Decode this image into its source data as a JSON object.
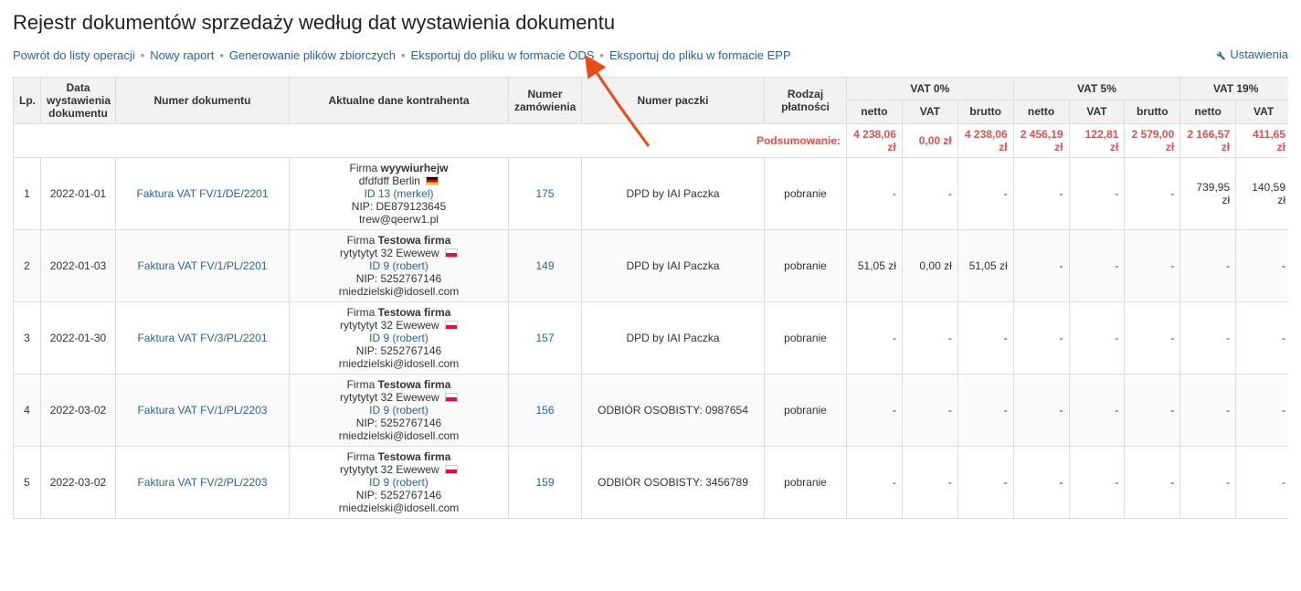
{
  "page": {
    "title": "Rejestr dokumentów sprzedaży według dat wystawienia dokumentu"
  },
  "toolbar": {
    "back_label": "Powrót do listy operacji",
    "new_report_label": "Nowy raport",
    "gen_files_label": "Generowanie plików zbiorczych",
    "export_ods_label": "Eksportuj do pliku w formacie ODS",
    "export_epp_label": "Eksportuj do pliku w formacie EPP",
    "settings_label": "Ustawienia"
  },
  "headers": {
    "lp": "Lp.",
    "date": "Data wystawienia dokumentu",
    "doc_number": "Numer dokumentu",
    "contractor": "Aktualne dane kontrahenta",
    "order_number": "Numer zamówienia",
    "package_number": "Numer paczki",
    "payment_type": "Rodzaj płatności",
    "vat0": "VAT 0%",
    "vat5": "VAT 5%",
    "vat19": "VAT 19%",
    "netto": "netto",
    "vat": "VAT",
    "brutto": "brutto"
  },
  "summary": {
    "label": "Podsumowanie:",
    "vat0_netto": "4 238,06 zł",
    "vat0_vat": "0,00 zł",
    "vat0_brutto": "4 238,06 zł",
    "vat5_netto": "2 456,19 zł",
    "vat5_vat": "122,81 zł",
    "vat5_brutto": "2 579,00 zł",
    "vat19_netto": "2 166,57 zł",
    "vat19_vat": "411,65 zł"
  },
  "rows": [
    {
      "lp": "1",
      "date": "2022-01-01",
      "doc": "Faktura VAT FV/1/DE/2201",
      "firm_prefix": "Firma ",
      "firm_name": "wyywiurhejw",
      "addr": "dfdfdff Berlin",
      "flag": "de",
      "id_link": "ID 13 (merkel)",
      "nip": "NIP: DE879123645",
      "email": "trew@qeerw1.pl",
      "order": "175",
      "package": "DPD by IAI Paczka",
      "payment": "pobranie",
      "v0n": "-",
      "v0v": "-",
      "v0b": "-",
      "v5n": "-",
      "v5v": "-",
      "v5b": "-",
      "v19n": "739,95 zł",
      "v19v": "140,59 zł"
    },
    {
      "lp": "2",
      "date": "2022-01-03",
      "doc": "Faktura VAT FV/1/PL/2201",
      "firm_prefix": "Firma ",
      "firm_name": "Testowa firma",
      "addr": "rytytytyt 32 Ewewew",
      "flag": "pl",
      "id_link": "ID 9 (robert)",
      "nip": "NIP: 5252767146",
      "email": "rniedzielski@idosell.com",
      "order": "149",
      "package": "DPD by IAI Paczka",
      "payment": "pobranie",
      "v0n": "51,05 zł",
      "v0v": "0,00 zł",
      "v0b": "51,05 zł",
      "v5n": "-",
      "v5v": "-",
      "v5b": "-",
      "v19n": "-",
      "v19v": "-"
    },
    {
      "lp": "3",
      "date": "2022-01-30",
      "doc": "Faktura VAT FV/3/PL/2201",
      "firm_prefix": "Firma ",
      "firm_name": "Testowa firma",
      "addr": "rytytytyt 32 Ewewew",
      "flag": "pl",
      "id_link": "ID 9 (robert)",
      "nip": "NIP: 5252767146",
      "email": "rniedzielski@idosell.com",
      "order": "157",
      "package": "DPD by IAI Paczka",
      "payment": "pobranie",
      "v0n": "-",
      "v0v": "-",
      "v0b": "-",
      "v5n": "-",
      "v5v": "-",
      "v5b": "-",
      "v19n": "-",
      "v19v": "-"
    },
    {
      "lp": "4",
      "date": "2022-03-02",
      "doc": "Faktura VAT FV/1/PL/2203",
      "firm_prefix": "Firma ",
      "firm_name": "Testowa firma",
      "addr": "rytytytyt 32 Ewewew",
      "flag": "pl",
      "id_link": "ID 9 (robert)",
      "nip": "NIP: 5252767146",
      "email": "rniedzielski@idosell.com",
      "order": "156",
      "package": "ODBIÓR OSOBISTY: 0987654",
      "payment": "pobranie",
      "v0n": "-",
      "v0v": "-",
      "v0b": "-",
      "v5n": "-",
      "v5v": "-",
      "v5b": "-",
      "v19n": "-",
      "v19v": "-"
    },
    {
      "lp": "5",
      "date": "2022-03-02",
      "doc": "Faktura VAT FV/2/PL/2203",
      "firm_prefix": "Firma ",
      "firm_name": "Testowa firma",
      "addr": "rytytytyt 32 Ewewew",
      "flag": "pl",
      "id_link": "ID 9 (robert)",
      "nip": "NIP: 5252767146",
      "email": "rniedzielski@idosell.com",
      "order": "159",
      "package": "ODBIÓR OSOBISTY: 3456789",
      "payment": "pobranie",
      "v0n": "-",
      "v0v": "-",
      "v0b": "-",
      "v5n": "-",
      "v5v": "-",
      "v5b": "-",
      "v19n": "-",
      "v19v": "-"
    }
  ],
  "annotation": {
    "arrow_color": "#e84c1a",
    "arrow_stroke": 3
  }
}
